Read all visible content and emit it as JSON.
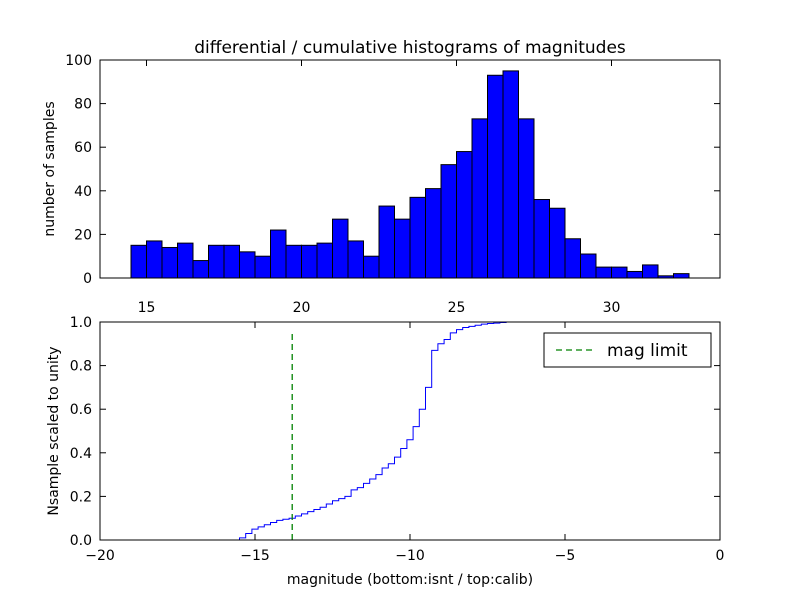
{
  "chart_data": [
    {
      "type": "bar",
      "title": "differential / cumulative histograms of magnitudes",
      "xlabel": "",
      "ylabel": "number of samples",
      "xlim": [
        13.5,
        33.5
      ],
      "ylim": [
        0,
        100
      ],
      "bar_color": "#0000ff",
      "bin_edges": [
        14.5,
        15.0,
        15.5,
        16.0,
        16.5,
        17.0,
        17.5,
        18.0,
        18.5,
        19.0,
        19.5,
        20.0,
        20.5,
        21.0,
        21.5,
        22.0,
        22.5,
        23.0,
        23.5,
        24.0,
        24.5,
        25.0,
        25.5,
        26.0,
        26.5,
        27.0,
        27.5,
        28.0,
        28.5,
        29.0,
        29.5,
        30.0,
        30.5,
        31.0,
        31.5,
        32.0,
        32.5,
        33.0
      ],
      "values": [
        15,
        17,
        14,
        16,
        8,
        15,
        15,
        12,
        10,
        22,
        15,
        15,
        16,
        27,
        17,
        10,
        33,
        27,
        37,
        41,
        52,
        58,
        73,
        93,
        95,
        73,
        36,
        32,
        18,
        11,
        5,
        5,
        3,
        6,
        1,
        2,
        0
      ],
      "xticks": [
        "15",
        "20",
        "25",
        "30"
      ],
      "xtick_values": [
        15,
        20,
        25,
        30
      ],
      "yticks": [
        "0",
        "20",
        "40",
        "60",
        "80",
        "100"
      ],
      "ytick_values": [
        0,
        20,
        40,
        60,
        80,
        100
      ]
    },
    {
      "type": "line",
      "title": "",
      "xlabel": "magnitude (bottom:isnt / top:calib)",
      "ylabel": "Nsample scaled to unity",
      "xlim": [
        -20,
        0
      ],
      "ylim": [
        0,
        1
      ],
      "line_color": "#0000ff",
      "step_x": [
        -20.0,
        -15.5,
        -15.3,
        -15.1,
        -14.9,
        -14.7,
        -14.5,
        -14.3,
        -14.1,
        -13.9,
        -13.7,
        -13.5,
        -13.3,
        -13.1,
        -12.9,
        -12.7,
        -12.5,
        -12.3,
        -12.1,
        -11.9,
        -11.7,
        -11.5,
        -11.3,
        -11.1,
        -10.9,
        -10.7,
        -10.5,
        -10.3,
        -10.1,
        -9.9,
        -9.7,
        -9.5,
        -9.3,
        -9.1,
        -8.9,
        -8.7,
        -8.5,
        -8.3,
        -8.1,
        -7.9,
        -7.7,
        -7.5,
        -7.3,
        -7.1,
        -6.9,
        -6.7,
        0.0
      ],
      "step_y": [
        0.0,
        0.01,
        0.03,
        0.05,
        0.06,
        0.07,
        0.08,
        0.09,
        0.095,
        0.1,
        0.11,
        0.12,
        0.13,
        0.14,
        0.15,
        0.165,
        0.18,
        0.19,
        0.2,
        0.23,
        0.24,
        0.26,
        0.28,
        0.3,
        0.33,
        0.35,
        0.38,
        0.42,
        0.46,
        0.52,
        0.6,
        0.7,
        0.87,
        0.9,
        0.92,
        0.95,
        0.965,
        0.975,
        0.98,
        0.985,
        0.99,
        0.993,
        0.995,
        0.998,
        1.0,
        1.0,
        1.0
      ],
      "mag_limit": {
        "x": -13.8,
        "y_top": 0.96,
        "color": "#008000",
        "label": "mag limit",
        "style": "dashed"
      },
      "legend_position": "top-right",
      "xticks": [
        "−20",
        "−15",
        "−10",
        "−5",
        "0"
      ],
      "xtick_values": [
        -20,
        -15,
        -10,
        -5,
        0
      ],
      "yticks": [
        "0.0",
        "0.2",
        "0.4",
        "0.6",
        "0.8",
        "1.0"
      ],
      "ytick_values": [
        0,
        0.2,
        0.4,
        0.6,
        0.8,
        1.0
      ]
    }
  ]
}
